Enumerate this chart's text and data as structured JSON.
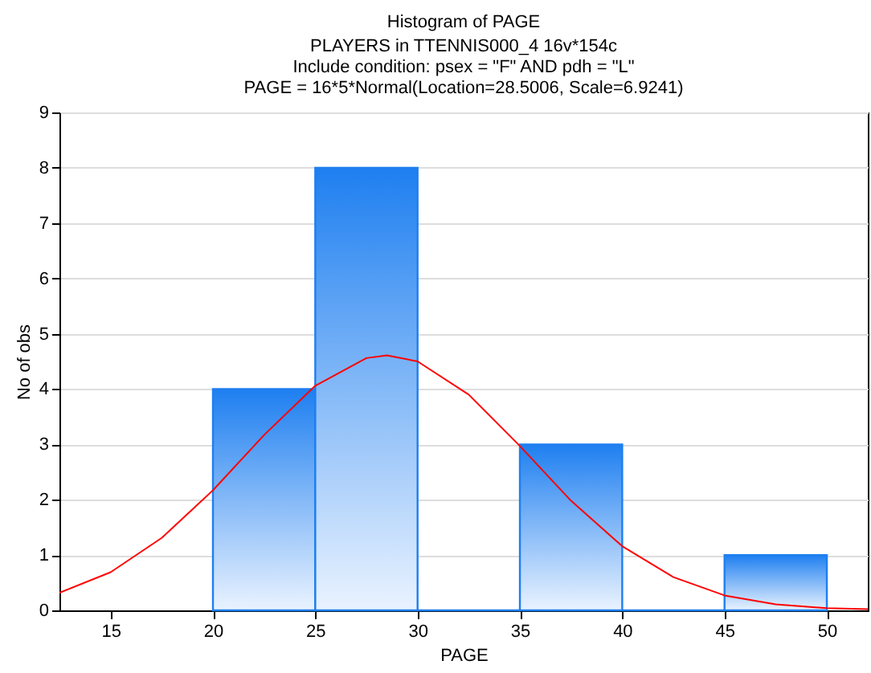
{
  "chart_data": {
    "type": "histogram",
    "title": "Histogram of PAGE",
    "subtitle": "PLAYERS in TTENNIS000_4 16v*154c\nInclude condition: psex = \"F\" AND pdh = \"L\"\nPAGE = 16*5*Normal(Location=28.5006, Scale=6.9241)",
    "xlabel": "PAGE",
    "ylabel": "No of obs",
    "bins": [
      20,
      25,
      30,
      35,
      40,
      45,
      50
    ],
    "values": [
      4,
      8,
      0,
      3,
      0,
      1
    ],
    "color": "#1e7ff0",
    "series": [
      {
        "type": "line",
        "color": "#ff0000",
        "x": [
          12.5,
          15,
          17.5,
          20,
          22.5,
          25,
          27.5,
          28.5,
          30,
          32.5,
          35,
          37.5,
          40,
          42.5,
          45,
          47.5,
          50,
          52
        ],
        "values": [
          0.32,
          0.69,
          1.31,
          2.17,
          3.17,
          4.06,
          4.56,
          4.61,
          4.5,
          3.9,
          2.97,
          1.98,
          1.16,
          0.6,
          0.27,
          0.11,
          0.04,
          0.02
        ]
      }
    ],
    "xlim": [
      12.5,
      52
    ],
    "xticks": [
      15,
      20,
      25,
      30,
      35,
      40,
      45,
      50
    ],
    "ylim": [
      0,
      9
    ],
    "yticks": [
      0,
      1,
      2,
      3,
      4,
      5,
      6,
      7,
      8,
      9
    ],
    "grid": "y"
  }
}
